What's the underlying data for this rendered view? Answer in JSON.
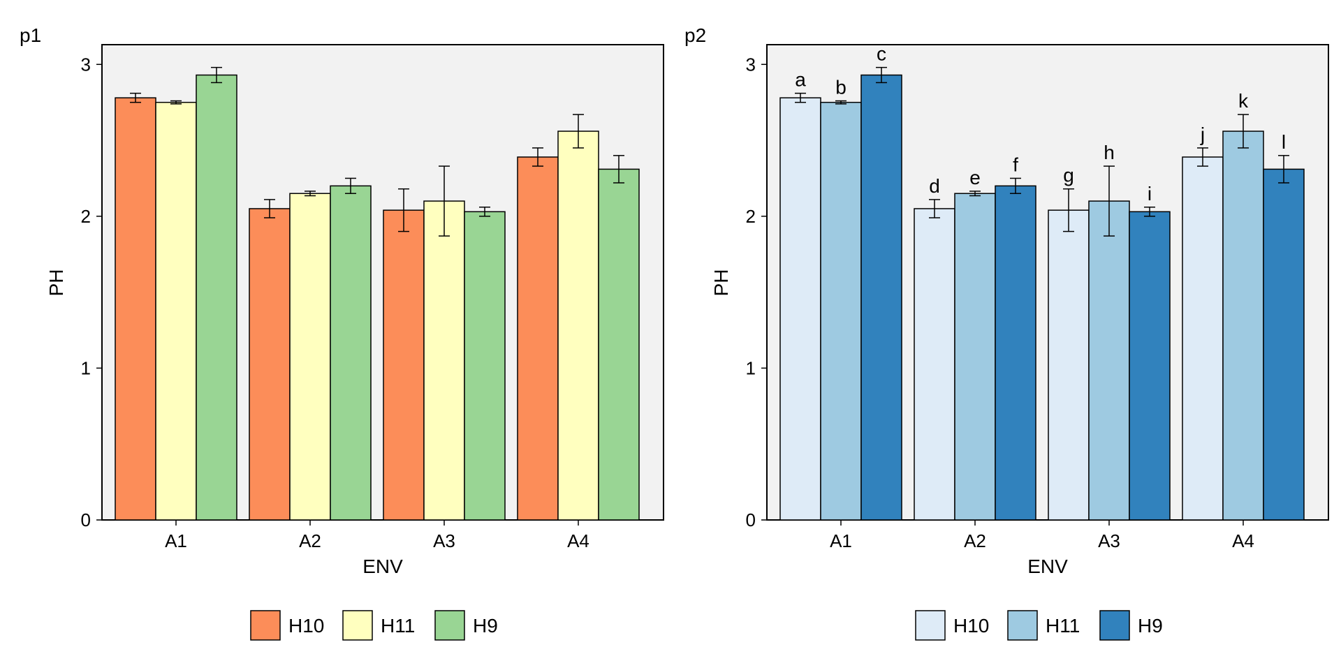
{
  "chart_data": [
    {
      "type": "bar",
      "panel_tag": "p1",
      "xlabel": "ENV",
      "ylabel": "PH",
      "ylim": [
        0,
        3.13
      ],
      "yticks": [
        "0",
        "1",
        "2",
        "3"
      ],
      "grid": false,
      "legend_position": "bottom",
      "categories": [
        "A1",
        "A2",
        "A3",
        "A4"
      ],
      "series": [
        {
          "name": "H10",
          "color": "#FC8D59",
          "values": [
            2.78,
            2.05,
            2.04,
            2.39
          ],
          "errors": [
            0.03,
            0.06,
            0.14,
            0.06
          ]
        },
        {
          "name": "H11",
          "color": "#FFFFBF",
          "values": [
            2.75,
            2.15,
            2.1,
            2.56
          ],
          "errors": [
            0.01,
            0.015,
            0.23,
            0.11
          ]
        },
        {
          "name": "H9",
          "color": "#99D594",
          "values": [
            2.93,
            2.2,
            2.03,
            2.31
          ],
          "errors": [
            0.05,
            0.05,
            0.03,
            0.09
          ]
        }
      ],
      "bar_labels": []
    },
    {
      "type": "bar",
      "panel_tag": "p2",
      "xlabel": "ENV",
      "ylabel": "PH",
      "ylim": [
        0,
        3.13
      ],
      "yticks": [
        "0",
        "1",
        "2",
        "3"
      ],
      "grid": false,
      "legend_position": "bottom",
      "categories": [
        "A1",
        "A2",
        "A3",
        "A4"
      ],
      "series": [
        {
          "name": "H10",
          "color": "#DEEBF7",
          "values": [
            2.78,
            2.05,
            2.04,
            2.39
          ],
          "errors": [
            0.03,
            0.06,
            0.14,
            0.06
          ]
        },
        {
          "name": "H11",
          "color": "#9ECAE1",
          "values": [
            2.75,
            2.15,
            2.1,
            2.56
          ],
          "errors": [
            0.01,
            0.015,
            0.23,
            0.11
          ]
        },
        {
          "name": "H9",
          "color": "#3182BD",
          "values": [
            2.93,
            2.2,
            2.03,
            2.31
          ],
          "errors": [
            0.05,
            0.05,
            0.03,
            0.09
          ]
        }
      ],
      "bar_labels": [
        [
          "a",
          "d",
          "g",
          "j"
        ],
        [
          "b",
          "e",
          "h",
          "k"
        ],
        [
          "c",
          "f",
          "i",
          "l"
        ]
      ]
    }
  ]
}
